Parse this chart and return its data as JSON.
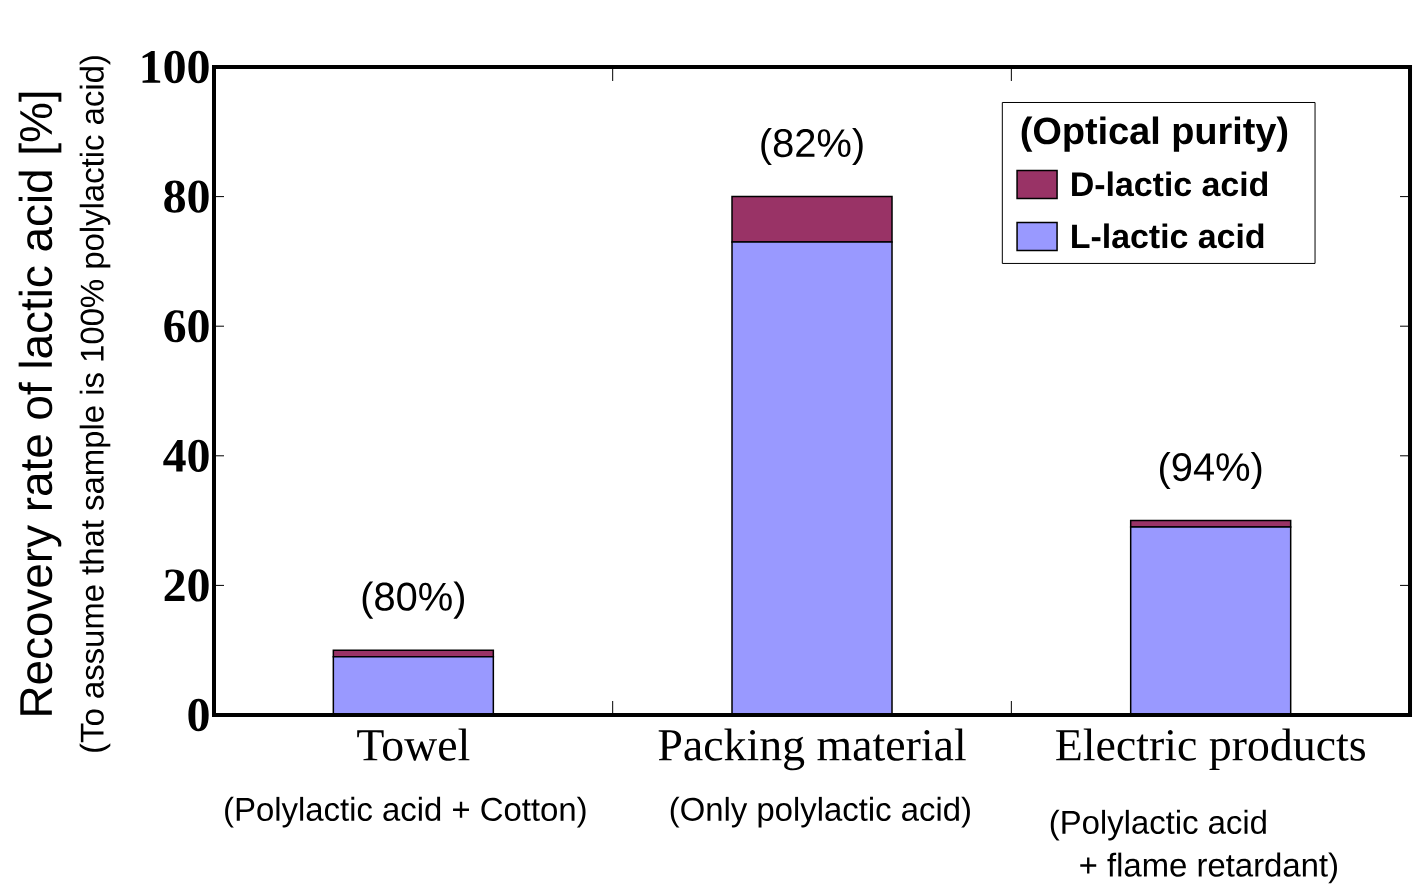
{
  "chart_data": {
    "type": "bar",
    "stacked": true,
    "legend_title": "(Optical purity)",
    "ylabel": "Recovery rate of lactic acid [%]",
    "categories": [
      "Towel",
      "Packing material",
      "Electric products"
    ],
    "series": [
      {
        "name": "L-lactic acid",
        "color": "#9999ff",
        "values": [
          9,
          73,
          29
        ]
      },
      {
        "name": "D-lactic acid",
        "color": "#993366",
        "values": [
          1,
          7,
          1
        ]
      }
    ],
    "ylim": [
      0,
      100
    ],
    "yticks": [
      0,
      20,
      40,
      60,
      80,
      100
    ],
    "legend": "top right",
    "annotations": [
      {
        "text": "(80%)",
        "x": "Towel",
        "y": 10
      },
      {
        "text": "(82%)",
        "x": "Packing material",
        "y": 80
      },
      {
        "text": "(94%)",
        "x": "Electric products",
        "y": 30
      },
      "(Polylactic acid + Cotton)",
      "(Only polylactic acid)",
      "(Polylactic acid",
      "+ flame retardant)",
      "(To assume that sample is 100% polylactic acid)"
    ]
  }
}
